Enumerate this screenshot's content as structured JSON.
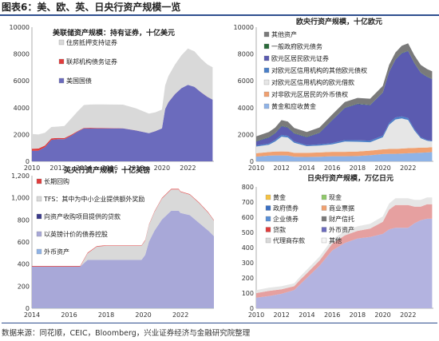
{
  "figure": {
    "title": "图表6：美、欧、英、日央行资产规模一览",
    "source": "数据来源：同花顺，CEIC，Bloomberg，兴业证券经济与金融研究院整理"
  },
  "chart_data": [
    {
      "id": "fed",
      "type": "area",
      "title": "美联储资产规模：持有证券，十亿美元",
      "xlim": [
        2010,
        2024
      ],
      "xticks": [
        2010,
        2012,
        2014,
        2016,
        2018,
        2020,
        2022
      ],
      "ylim": [
        0,
        10000
      ],
      "yticks": [
        0,
        2000,
        4000,
        6000,
        8000,
        10000
      ],
      "x": [
        2010,
        2010.5,
        2011,
        2011.5,
        2012,
        2012.5,
        2013,
        2013.5,
        2014,
        2014.5,
        2015,
        2016,
        2017,
        2018,
        2019,
        2019.5,
        2020,
        2020.25,
        2020.5,
        2021,
        2021.5,
        2022,
        2022.5,
        2023,
        2023.5,
        2023.9
      ],
      "series": [
        {
          "name": "美国国债",
          "color": "#6b6bbd",
          "values": [
            780,
            800,
            1050,
            1600,
            1650,
            1650,
            1900,
            2200,
            2450,
            2460,
            2460,
            2460,
            2460,
            2300,
            2100,
            2250,
            2450,
            3900,
            4400,
            5000,
            5450,
            5700,
            5550,
            5150,
            4800,
            4600
          ]
        },
        {
          "name": "联邦机构债务证券",
          "color": "#e03c3c",
          "values": [
            160,
            150,
            130,
            110,
            90,
            80,
            70,
            50,
            45,
            40,
            35,
            25,
            5,
            3,
            3,
            3,
            3,
            3,
            3,
            3,
            3,
            3,
            3,
            3,
            3,
            3
          ]
        },
        {
          "name": "住房抵押支持证券",
          "color": "#d9d9d9",
          "values": [
            1100,
            1050,
            950,
            850,
            850,
            900,
            1200,
            1450,
            1700,
            1730,
            1750,
            1750,
            1760,
            1650,
            1450,
            1400,
            1400,
            1750,
            1950,
            2200,
            2450,
            2700,
            2650,
            2500,
            2420,
            2400
          ]
        }
      ]
    },
    {
      "id": "ecb",
      "type": "area",
      "title": "欧央行资产规模，十亿欧元",
      "xlim": [
        2010,
        2024
      ],
      "xticks": [
        2010,
        2012,
        2014,
        2016,
        2018,
        2020,
        2022
      ],
      "ylim": [
        0,
        10000
      ],
      "yticks": [
        0,
        2000,
        4000,
        6000,
        8000,
        10000
      ],
      "x": [
        2010,
        2011,
        2011.5,
        2012,
        2012.5,
        2013,
        2014,
        2015,
        2016,
        2017,
        2018,
        2019,
        2020,
        2020.5,
        2021,
        2021.5,
        2022,
        2022.5,
        2023,
        2023.5,
        2023.9
      ],
      "series": [
        {
          "name": "黄金和应收黄金",
          "color": "#8fb3e6",
          "values": [
            350,
            420,
            440,
            440,
            430,
            340,
            330,
            340,
            380,
            380,
            390,
            450,
            540,
            560,
            560,
            580,
            600,
            620,
            640,
            660,
            690
          ]
        },
        {
          "name": "对非欧元区居民的外币债权",
          "color": "#f0a070",
          "values": [
            250,
            270,
            290,
            300,
            300,
            290,
            300,
            320,
            330,
            330,
            340,
            350,
            350,
            360,
            360,
            370,
            380,
            380,
            380,
            370,
            370
          ]
        },
        {
          "name": "对欧元区信用机构的欧元借款",
          "color": "#e6e6e6",
          "values": [
            500,
            550,
            750,
            1100,
            1050,
            750,
            500,
            520,
            550,
            760,
            730,
            620,
            900,
            1800,
            2200,
            2250,
            2100,
            1300,
            700,
            500,
            420
          ]
        },
        {
          "name": "对欧元区信用机构的其他欧元债权",
          "color": "#4a7fc8",
          "values": [
            80,
            90,
            110,
            130,
            120,
            100,
            80,
            90,
            100,
            110,
            110,
            120,
            130,
            140,
            150,
            150,
            140,
            110,
            80,
            60,
            50
          ]
        },
        {
          "name": "欧元区居民欧元证券",
          "color": "#5b5bb0",
          "values": [
            300,
            450,
            500,
            650,
            620,
            600,
            590,
            850,
            1700,
            2400,
            2700,
            2650,
            3200,
            3800,
            4300,
            4700,
            5000,
            4900,
            4800,
            4700,
            4600
          ]
        },
        {
          "name": "一般政府欧元债务",
          "color": "#2a6a3a",
          "values": [
            30,
            30,
            30,
            30,
            30,
            25,
            25,
            25,
            25,
            25,
            25,
            25,
            25,
            25,
            25,
            25,
            25,
            25,
            25,
            25,
            25
          ]
        },
        {
          "name": "其他资产",
          "color": "#7a7a7a",
          "values": [
            350,
            380,
            400,
            420,
            410,
            380,
            360,
            380,
            400,
            420,
            430,
            450,
            480,
            500,
            520,
            540,
            550,
            560,
            560,
            560,
            560
          ]
        }
      ]
    },
    {
      "id": "boe",
      "type": "area",
      "title": "英央行资产规模，十亿英镑",
      "xlim": [
        2014,
        2023.8
      ],
      "xticks": [
        2014,
        2016,
        2018,
        2020,
        2022
      ],
      "ylim": [
        0,
        1200
      ],
      "yticks": [
        0,
        200,
        400,
        600,
        800,
        1000,
        1200
      ],
      "ytick_labels": [
        "0",
        "200",
        "400",
        "600",
        "800",
        "1,000",
        "1,200"
      ],
      "x": [
        2014,
        2015,
        2016,
        2016.6,
        2017,
        2017.5,
        2018,
        2019,
        2019.9,
        2020.1,
        2020.3,
        2020.6,
        2021,
        2021.5,
        2021.9,
        2022,
        2022.5,
        2023,
        2023.5,
        2023.8
      ],
      "series": [
        {
          "name": "外币资产",
          "color": "#8fb3e6",
          "values": [
            3,
            3,
            3,
            3,
            3,
            3,
            3,
            3,
            3,
            3,
            3,
            3,
            3,
            3,
            3,
            3,
            3,
            3,
            3,
            3
          ]
        },
        {
          "name": "以英镑计价的债券控股",
          "color": "#a8a8d8",
          "values": [
            375,
            375,
            375,
            375,
            435,
            435,
            435,
            435,
            435,
            480,
            600,
            700,
            800,
            880,
            880,
            860,
            840,
            770,
            700,
            650
          ]
        },
        {
          "name": "向资产收购项目提供的贷款",
          "color": "#3a3a8a",
          "values": [
            0,
            0,
            0,
            0,
            0,
            0,
            0,
            0,
            0,
            0,
            0,
            0,
            0,
            0,
            0,
            0,
            0,
            0,
            0,
            0
          ]
        },
        {
          "name": "TFS：其中为中小企业提供额外奖励",
          "color": "#d9d9d9",
          "values": [
            0,
            0,
            0,
            0,
            60,
            120,
            127,
            127,
            127,
            130,
            150,
            170,
            190,
            193,
            193,
            190,
            185,
            180,
            160,
            140
          ]
        },
        {
          "name": "长期回购",
          "color": "#e03c3c",
          "values": [
            5,
            5,
            5,
            5,
            5,
            5,
            5,
            5,
            5,
            5,
            5,
            5,
            5,
            5,
            5,
            5,
            5,
            5,
            5,
            5
          ]
        }
      ]
    },
    {
      "id": "boj",
      "type": "area",
      "title": "日央行资产规模，万亿日元",
      "xlim": [
        2010,
        2024
      ],
      "xticks": [
        2010,
        2012,
        2014,
        2016,
        2018,
        2020,
        2022
      ],
      "ylim": [
        0,
        800
      ],
      "yticks": [
        0,
        100,
        200,
        300,
        400,
        500,
        600,
        700,
        800
      ],
      "x": [
        2010,
        2011,
        2012,
        2013,
        2013.5,
        2014,
        2015,
        2016,
        2017,
        2018,
        2019,
        2020,
        2020.5,
        2021,
        2022,
        2022.5,
        2023,
        2023.5,
        2023.9
      ],
      "series": [
        {
          "name": "政府债券",
          "color": "#b3b3e0",
          "values": [
            70,
            80,
            95,
            120,
            160,
            200,
            280,
            380,
            430,
            460,
            470,
            490,
            520,
            530,
            530,
            560,
            580,
            590,
            590
          ]
        },
        {
          "name": "贷款",
          "color": "#e6a0a0",
          "values": [
            30,
            35,
            30,
            25,
            30,
            30,
            35,
            45,
            50,
            50,
            55,
            80,
            130,
            150,
            150,
            110,
            90,
            95,
            95
          ]
        },
        {
          "name": "其他",
          "color": "#e6e6e6",
          "values": [
            20,
            20,
            20,
            20,
            22,
            24,
            25,
            28,
            30,
            30,
            32,
            35,
            40,
            45,
            45,
            45,
            45,
            45,
            45
          ]
        }
      ],
      "legend": [
        "黄金",
        "现金",
        "政府债券",
        "商业票据",
        "企业债券",
        "财产信托",
        "贷款",
        "外币资产",
        "代理商存款",
        "其他"
      ],
      "legend_colors": [
        "#f5c242",
        "#8fc86a",
        "#3a6fc2",
        "#f0a070",
        "#5a8fd6",
        "#7a7a7a",
        "#e03c3c",
        "#6b6bbd",
        "#d9d9d9",
        "#f5f5f5"
      ]
    }
  ]
}
